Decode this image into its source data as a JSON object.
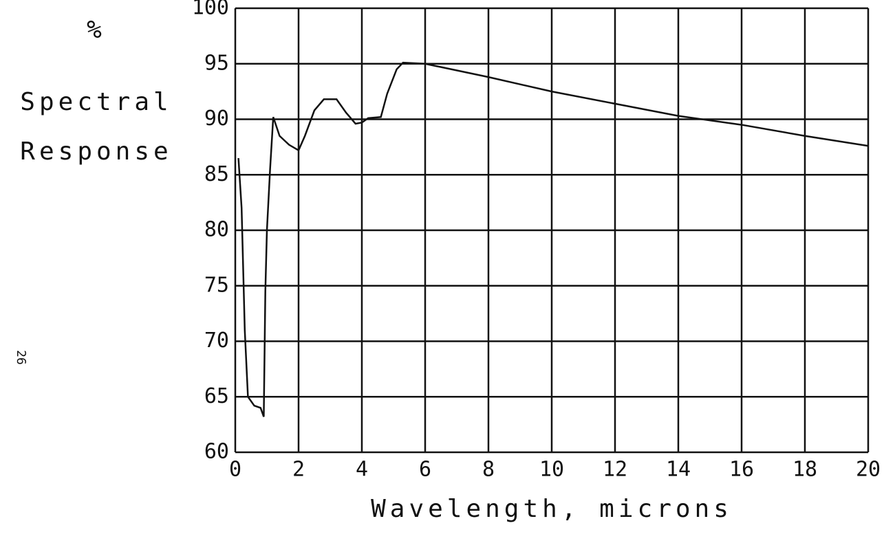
{
  "chart_data": {
    "type": "line",
    "ylabel": [
      "%",
      "Spectral",
      "Response"
    ],
    "xlabel": "Wavelength, microns",
    "page_number": "26",
    "xlim": [
      0,
      20
    ],
    "ylim": [
      60,
      100
    ],
    "xticks": [
      0,
      2,
      4,
      6,
      8,
      10,
      12,
      14,
      16,
      18,
      20
    ],
    "yticks": [
      60,
      65,
      70,
      75,
      80,
      85,
      90,
      95,
      100
    ],
    "grid": true,
    "series": [
      {
        "color": "#111111",
        "x": [
          0.1,
          0.2,
          0.3,
          0.4,
          0.6,
          0.8,
          0.9,
          0.95,
          1.0,
          1.1,
          1.2,
          1.4,
          1.7,
          2.0,
          2.2,
          2.5,
          2.8,
          3.2,
          3.5,
          3.8,
          4.0,
          4.2,
          4.6,
          4.8,
          5.1,
          5.3,
          6.0,
          8,
          10,
          12,
          14,
          16,
          18,
          20
        ],
        "values": [
          86.5,
          82,
          71,
          65,
          64.2,
          64,
          63.2,
          74.5,
          80,
          85.5,
          90.2,
          88.5,
          87.7,
          87.2,
          88.5,
          90.8,
          91.8,
          91.8,
          90.6,
          89.6,
          89.7,
          90.1,
          90.2,
          92.3,
          94.5,
          95.1,
          95,
          93.8,
          92.5,
          91.4,
          90.3,
          89.5,
          88.5,
          87.6
        ]
      }
    ]
  }
}
